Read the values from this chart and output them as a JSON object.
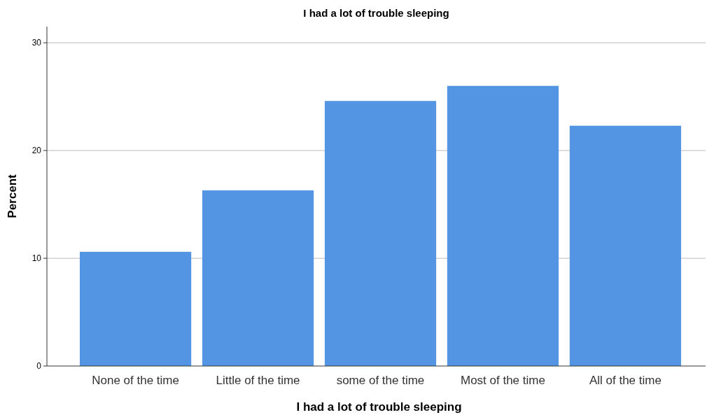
{
  "chart_data": {
    "type": "bar",
    "title": "I had a lot of trouble sleeping",
    "xlabel": "I had a lot of trouble sleeping",
    "ylabel": "Percent",
    "categories": [
      "None of the time",
      "Little of the time",
      "some of the time",
      "Most of the time",
      "All of the time"
    ],
    "values": [
      10.6,
      16.3,
      24.6,
      26.0,
      22.3
    ],
    "color": "#5394e3",
    "ylim": [
      0,
      31.5
    ],
    "yticks": [
      0,
      10,
      20,
      30
    ],
    "grid": "y"
  }
}
